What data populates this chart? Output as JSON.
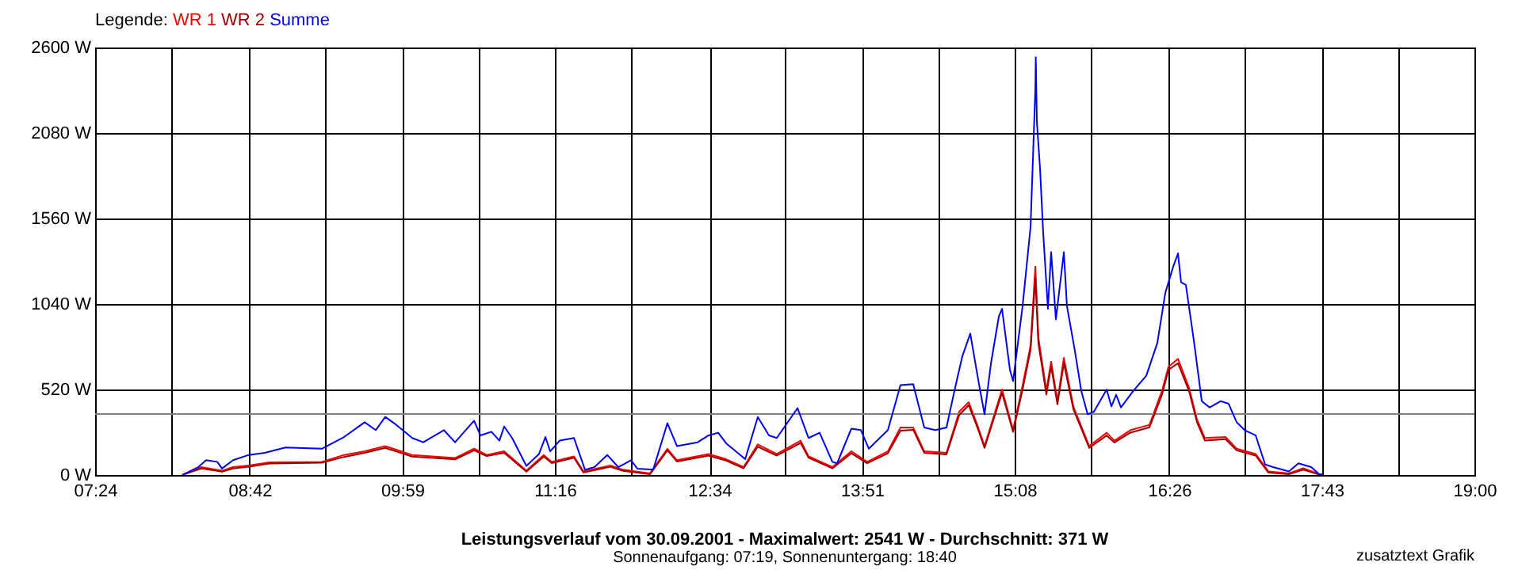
{
  "chart_data": {
    "type": "line",
    "title": "Leistungsverlauf vom 30.09.2001 - Maximalwert: 2541 W - Durchschnitt: 371 W",
    "subtitle": "Sonnenaufgang: 07:19, Sonnenuntergang: 18:40",
    "annotations": [
      "zusatztext Grafik"
    ],
    "legend_title": "Legende:",
    "legend": "top left",
    "grid": true,
    "xlim": [
      7.4,
      19.0
    ],
    "xticks": [
      {
        "value": 7.4,
        "label": "07:24"
      },
      {
        "value": 8.044,
        "label": null
      },
      {
        "value": 8.7,
        "label": "08:42"
      },
      {
        "value": 9.333,
        "label": null
      },
      {
        "value": 9.9833,
        "label": "09:59"
      },
      {
        "value": 10.622,
        "label": null
      },
      {
        "value": 11.267,
        "label": "11:16"
      },
      {
        "value": 11.911,
        "label": null
      },
      {
        "value": 12.5667,
        "label": "12:34"
      },
      {
        "value": 13.2,
        "label": null
      },
      {
        "value": 13.85,
        "label": "13:51"
      },
      {
        "value": 14.489,
        "label": null
      },
      {
        "value": 15.133,
        "label": "15:08"
      },
      {
        "value": 15.778,
        "label": null
      },
      {
        "value": 16.4333,
        "label": "16:26"
      },
      {
        "value": 17.067,
        "label": null
      },
      {
        "value": 17.7167,
        "label": "17:43"
      },
      {
        "value": 18.356,
        "label": null
      },
      {
        "value": 19.0,
        "label": "19:00"
      }
    ],
    "ylim": [
      0,
      2600
    ],
    "yticks": [
      {
        "value": 0,
        "label": "0 W"
      },
      {
        "value": 520,
        "label": "520 W"
      },
      {
        "value": 1040,
        "label": "1040 W"
      },
      {
        "value": 1560,
        "label": "1560 W"
      },
      {
        "value": 2080,
        "label": "2080 W"
      },
      {
        "value": 2600,
        "label": "2600 W"
      }
    ],
    "ref_lines": [
      {
        "axis": "y",
        "value": 371,
        "color": "#808080"
      }
    ],
    "series": [
      {
        "name": "WR 1",
        "color": "#ff0000",
        "x": [
          8.133,
          8.293,
          8.467,
          8.56,
          8.693,
          8.867,
          9.307,
          9.493,
          9.667,
          9.84,
          10.067,
          10.427,
          10.587,
          10.693,
          10.84,
          11.027,
          11.173,
          11.24,
          11.427,
          11.507,
          11.733,
          11.84,
          12.067,
          12.213,
          12.293,
          12.56,
          12.707,
          12.853,
          12.973,
          13.133,
          13.333,
          13.4,
          13.6,
          13.76,
          13.893,
          14.067,
          14.173,
          14.28,
          14.373,
          14.56,
          14.667,
          14.747,
          14.827,
          14.88,
          15.027,
          15.12,
          15.2,
          15.267,
          15.307,
          15.333,
          15.4,
          15.44,
          15.493,
          15.547,
          15.627,
          15.76,
          15.907,
          15.973,
          16.107,
          16.267,
          16.373,
          16.427,
          16.507,
          16.6,
          16.667,
          16.733,
          16.907,
          17.0,
          17.16,
          17.267,
          17.44,
          17.56,
          17.693,
          17.733
        ],
        "values": [
          0,
          48,
          26,
          48,
          58,
          77,
          80,
          122,
          144,
          176,
          122,
          103,
          160,
          122,
          144,
          26,
          122,
          80,
          113,
          22,
          58,
          32,
          10,
          160,
          90,
          128,
          96,
          48,
          186,
          128,
          209,
          113,
          48,
          144,
          80,
          144,
          289,
          289,
          144,
          135,
          385,
          443,
          289,
          176,
          520,
          273,
          546,
          787,
          1268,
          835,
          513,
          690,
          449,
          713,
          417,
          176,
          257,
          209,
          273,
          305,
          513,
          658,
          706,
          530,
          337,
          225,
          231,
          160,
          128,
          22,
          10,
          41,
          6,
          0
        ]
      },
      {
        "name": "WR 2",
        "color": "#a00000",
        "x": [
          8.133,
          8.293,
          8.467,
          8.56,
          8.693,
          8.867,
          9.307,
          9.493,
          9.667,
          9.84,
          10.067,
          10.427,
          10.587,
          10.693,
          10.84,
          11.027,
          11.173,
          11.24,
          11.427,
          11.507,
          11.733,
          11.84,
          12.067,
          12.213,
          12.293,
          12.56,
          12.707,
          12.853,
          12.973,
          13.133,
          13.333,
          13.4,
          13.6,
          13.76,
          13.893,
          14.067,
          14.173,
          14.28,
          14.373,
          14.56,
          14.667,
          14.747,
          14.827,
          14.88,
          15.027,
          15.12,
          15.2,
          15.267,
          15.307,
          15.333,
          15.4,
          15.44,
          15.493,
          15.547,
          15.627,
          15.76,
          15.907,
          15.973,
          16.107,
          16.267,
          16.373,
          16.427,
          16.507,
          16.6,
          16.667,
          16.733,
          16.907,
          17.0,
          17.16,
          17.267,
          17.44,
          17.56,
          17.693,
          17.733
        ],
        "values": [
          0,
          40,
          20,
          40,
          50,
          70,
          75,
          110,
          135,
          165,
          112,
          95,
          150,
          115,
          135,
          20,
          112,
          72,
          105,
          15,
          50,
          25,
          5,
          150,
          82,
          118,
          88,
          40,
          172,
          118,
          195,
          105,
          40,
          132,
          72,
          132,
          270,
          275,
          135,
          125,
          365,
          425,
          275,
          165,
          500,
          262,
          520,
          760,
          1200,
          800,
          490,
          660,
          430,
          680,
          400,
          165,
          240,
          198,
          258,
          290,
          490,
          640,
          680,
          510,
          320,
          210,
          218,
          150,
          118,
          15,
          5,
          32,
          3,
          0
        ]
      },
      {
        "name": "Summe",
        "color": "#0000ff",
        "x": [
          8.133,
          8.267,
          8.333,
          8.427,
          8.467,
          8.56,
          8.693,
          8.827,
          9.0,
          9.307,
          9.493,
          9.667,
          9.76,
          9.84,
          9.933,
          10.067,
          10.16,
          10.333,
          10.427,
          10.587,
          10.64,
          10.733,
          10.8,
          10.84,
          10.907,
          11.027,
          11.133,
          11.187,
          11.227,
          11.307,
          11.427,
          11.52,
          11.6,
          11.707,
          11.8,
          11.907,
          11.96,
          12.093,
          12.213,
          12.293,
          12.467,
          12.56,
          12.64,
          12.707,
          12.84,
          12.867,
          12.973,
          13.067,
          13.133,
          13.307,
          13.4,
          13.493,
          13.6,
          13.64,
          13.76,
          13.84,
          13.907,
          14.067,
          14.173,
          14.28,
          14.373,
          14.467,
          14.56,
          14.627,
          14.693,
          14.76,
          14.827,
          14.88,
          14.933,
          15.0,
          15.027,
          15.093,
          15.12,
          15.2,
          15.267,
          15.307,
          15.311,
          15.32,
          15.347,
          15.373,
          15.413,
          15.44,
          15.48,
          15.547,
          15.573,
          15.64,
          15.693,
          15.747,
          15.8,
          15.907,
          15.947,
          15.987,
          16.027,
          16.133,
          16.24,
          16.333,
          16.4,
          16.467,
          16.507,
          16.533,
          16.573,
          16.64,
          16.707,
          16.773,
          16.867,
          16.933,
          17.0,
          17.067,
          17.16,
          17.24,
          17.307,
          17.44,
          17.52,
          17.627,
          17.693,
          17.733
        ],
        "values": [
          0,
          48,
          90,
          80,
          39,
          90,
          122,
          135,
          167,
          160,
          231,
          321,
          273,
          353,
          305,
          225,
          199,
          273,
          199,
          330,
          241,
          263,
          209,
          295,
          225,
          55,
          128,
          231,
          144,
          209,
          225,
          32,
          48,
          122,
          48,
          90,
          39,
          32,
          315,
          176,
          199,
          241,
          257,
          193,
          113,
          96,
          353,
          241,
          225,
          407,
          225,
          257,
          80,
          71,
          282,
          273,
          160,
          273,
          546,
          552,
          289,
          273,
          289,
          513,
          722,
          860,
          578,
          369,
          674,
          963,
          1011,
          642,
          571,
          1027,
          1509,
          2343,
          2541,
          2150,
          1861,
          1476,
          1011,
          1355,
          947,
          1355,
          1027,
          754,
          513,
          369,
          385,
          520,
          417,
          488,
          411,
          513,
          604,
          802,
          1107,
          1268,
          1348,
          1172,
          1156,
          819,
          449,
          411,
          449,
          433,
          321,
          273,
          241,
          64,
          48,
          22,
          71,
          48,
          6,
          0
        ]
      }
    ]
  }
}
